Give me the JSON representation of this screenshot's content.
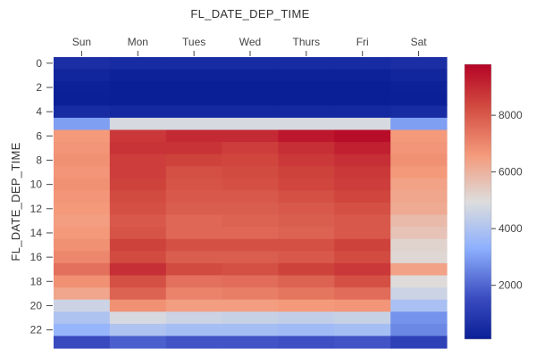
{
  "chart_data": {
    "type": "heatmap",
    "title": "FL_DATE_DEP_TIME",
    "xlabel": "",
    "ylabel": "FL_DATE_DEP_TIME",
    "categories": [
      "Sun",
      "Mon",
      "Tues",
      "Wed",
      "Thurs",
      "Fri",
      "Sat"
    ],
    "y": [
      0,
      1,
      2,
      3,
      4,
      5,
      6,
      7,
      8,
      9,
      10,
      11,
      12,
      13,
      14,
      15,
      16,
      17,
      18,
      19,
      20,
      21,
      22,
      23
    ],
    "y_tick_labels": [
      "0",
      "2",
      "4",
      "6",
      "8",
      "10",
      "12",
      "14",
      "16",
      "18",
      "20",
      "22"
    ],
    "values": [
      [
        600,
        500,
        500,
        500,
        500,
        500,
        600
      ],
      [
        300,
        200,
        200,
        200,
        200,
        200,
        300
      ],
      [
        150,
        100,
        100,
        100,
        100,
        100,
        150
      ],
      [
        120,
        100,
        100,
        100,
        100,
        100,
        120
      ],
      [
        500,
        400,
        400,
        400,
        400,
        400,
        500
      ],
      [
        3000,
        4800,
        4800,
        4800,
        4800,
        4800,
        3000
      ],
      [
        6600,
        8700,
        9000,
        9000,
        9400,
        9600,
        6600
      ],
      [
        6700,
        8800,
        8800,
        8600,
        8900,
        9200,
        6700
      ],
      [
        6800,
        8600,
        8500,
        8400,
        8700,
        8900,
        6800
      ],
      [
        6700,
        8600,
        8200,
        8300,
        8500,
        8700,
        6600
      ],
      [
        6800,
        8500,
        8100,
        8200,
        8400,
        8600,
        6400
      ],
      [
        6700,
        8300,
        8000,
        8000,
        8200,
        8400,
        6300
      ],
      [
        6600,
        8200,
        7900,
        7900,
        8000,
        8200,
        6200
      ],
      [
        6500,
        8000,
        7700,
        7800,
        7900,
        8000,
        5800
      ],
      [
        6600,
        8100,
        7700,
        7700,
        7800,
        8000,
        5600
      ],
      [
        6800,
        8500,
        8200,
        8200,
        8200,
        8500,
        5200
      ],
      [
        7000,
        8300,
        7900,
        7900,
        8000,
        8300,
        5100
      ],
      [
        7500,
        8900,
        8300,
        8200,
        8500,
        8700,
        6400
      ],
      [
        6800,
        8200,
        7500,
        7600,
        7800,
        8200,
        5000
      ],
      [
        6300,
        7800,
        7100,
        7200,
        7400,
        7600,
        4600
      ],
      [
        4600,
        6800,
        6500,
        6500,
        6600,
        6700,
        3900
      ],
      [
        4000,
        4800,
        4600,
        4500,
        4400,
        4500,
        2800
      ],
      [
        3500,
        4000,
        3800,
        3800,
        3700,
        3800,
        2600
      ],
      [
        1500,
        1900,
        1700,
        1700,
        1600,
        1700,
        1200
      ]
    ],
    "zmin": 100,
    "zmax": 9800,
    "colorscale": [
      "#0a1f96",
      "#3b4cc0",
      "#8db0fe",
      "#dddddd",
      "#f49a7b",
      "#d1493f",
      "#b40426"
    ],
    "colorbar_ticks": [
      2000,
      4000,
      6000,
      8000
    ],
    "grid": false,
    "colorbar_position": "right"
  }
}
